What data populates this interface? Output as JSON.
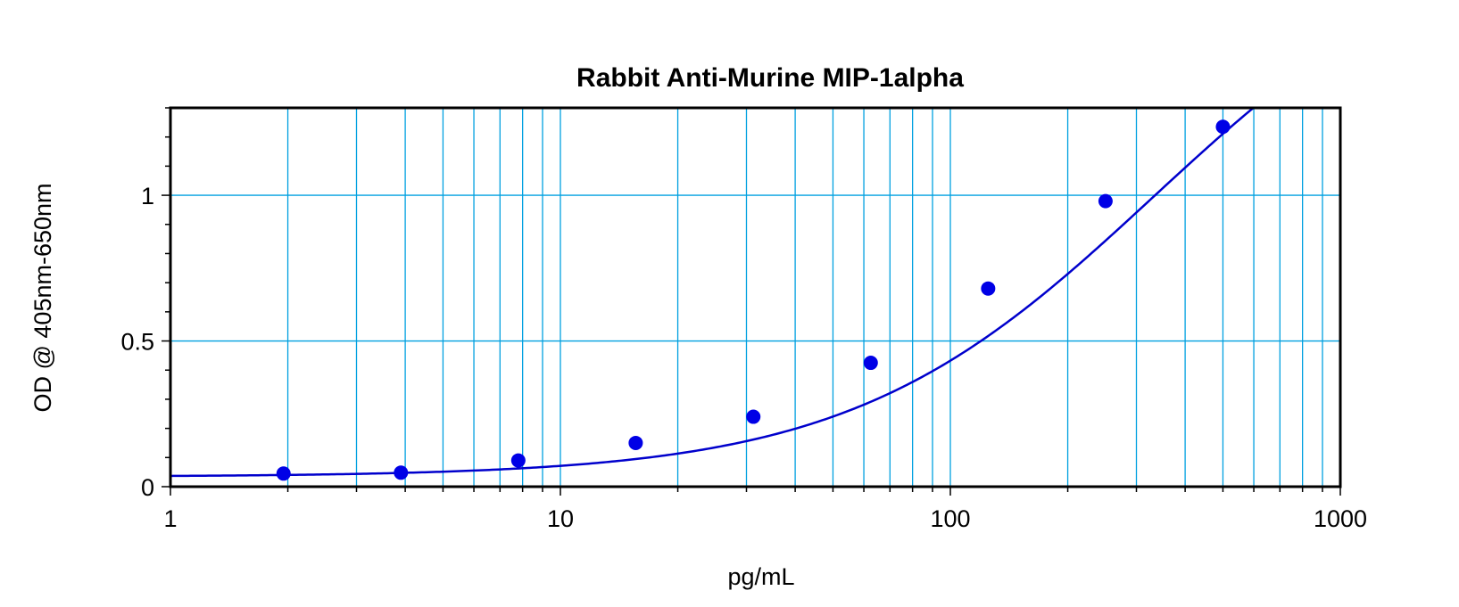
{
  "chart_data": {
    "type": "scatter",
    "title": "Rabbit Anti-Murine MIP-1alpha",
    "xlabel": "pg/mL",
    "ylabel": "OD @ 405nm-650nm",
    "x_scale": "log",
    "xlim": [
      1,
      1000
    ],
    "ylim": [
      0,
      1.3
    ],
    "x_ticks": [
      {
        "value": 1,
        "label": "1"
      },
      {
        "value": 10,
        "label": "10"
      },
      {
        "value": 100,
        "label": "100"
      },
      {
        "value": 1000,
        "label": "1000"
      }
    ],
    "y_ticks": [
      {
        "value": 0,
        "label": "0"
      },
      {
        "value": 0.5,
        "label": "0.5"
      },
      {
        "value": 1,
        "label": "1"
      }
    ],
    "grid": true,
    "series": [
      {
        "x": [
          1.95,
          3.9,
          7.8,
          15.6,
          31.25,
          62.5,
          125,
          250,
          500
        ],
        "y": [
          0.045,
          0.048,
          0.09,
          0.15,
          0.24,
          0.425,
          0.68,
          0.98,
          1.235
        ]
      }
    ],
    "fit_curve": {
      "model": "4PL",
      "bottom": 0.034,
      "top": 1.95,
      "ec50": 330,
      "hill": 1.12
    },
    "colors": {
      "points": "#0000e6",
      "curve": "#0000cc",
      "grid": "#00a0e0",
      "frame": "#000000"
    }
  }
}
